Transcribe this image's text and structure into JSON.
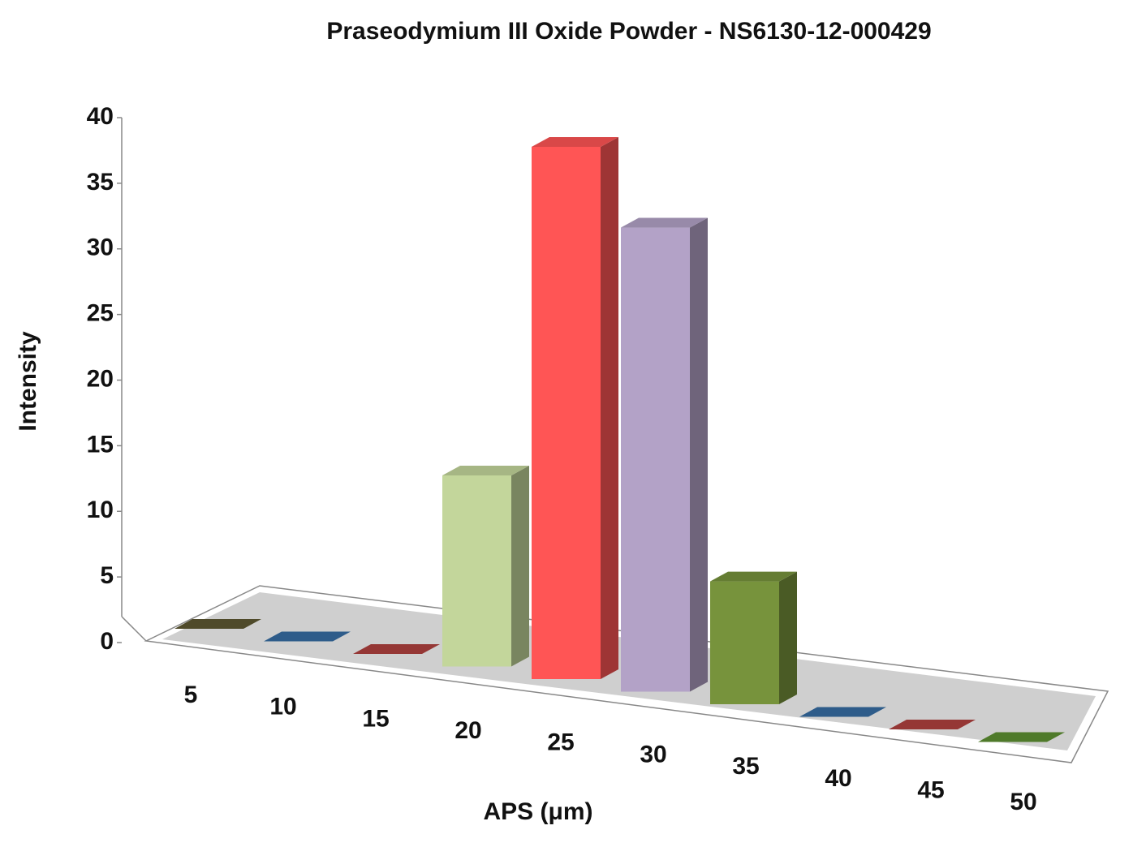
{
  "chart_data": {
    "type": "bar3d",
    "title": "Praseodymium III Oxide Powder - NS6130-12-000429",
    "x_label": "APS (μm)",
    "y_label": "Intensity",
    "categories": [
      "5",
      "10",
      "15",
      "20",
      "25",
      "30",
      "35",
      "40",
      "45",
      "50"
    ],
    "values": [
      0,
      0,
      0,
      14,
      39,
      34,
      9,
      0,
      0,
      0
    ],
    "colors": [
      "#4f4a2a",
      "#2e5c8a",
      "#953735",
      "#c3d69b",
      "#ff5555",
      "#b3a2c7",
      "#77933c",
      "#2e5c8a",
      "#953735",
      "#4f7a2a"
    ],
    "ylim": [
      0,
      40
    ],
    "yticks": [
      0,
      5,
      10,
      15,
      20,
      25,
      30,
      35,
      40
    ],
    "grid": false
  }
}
